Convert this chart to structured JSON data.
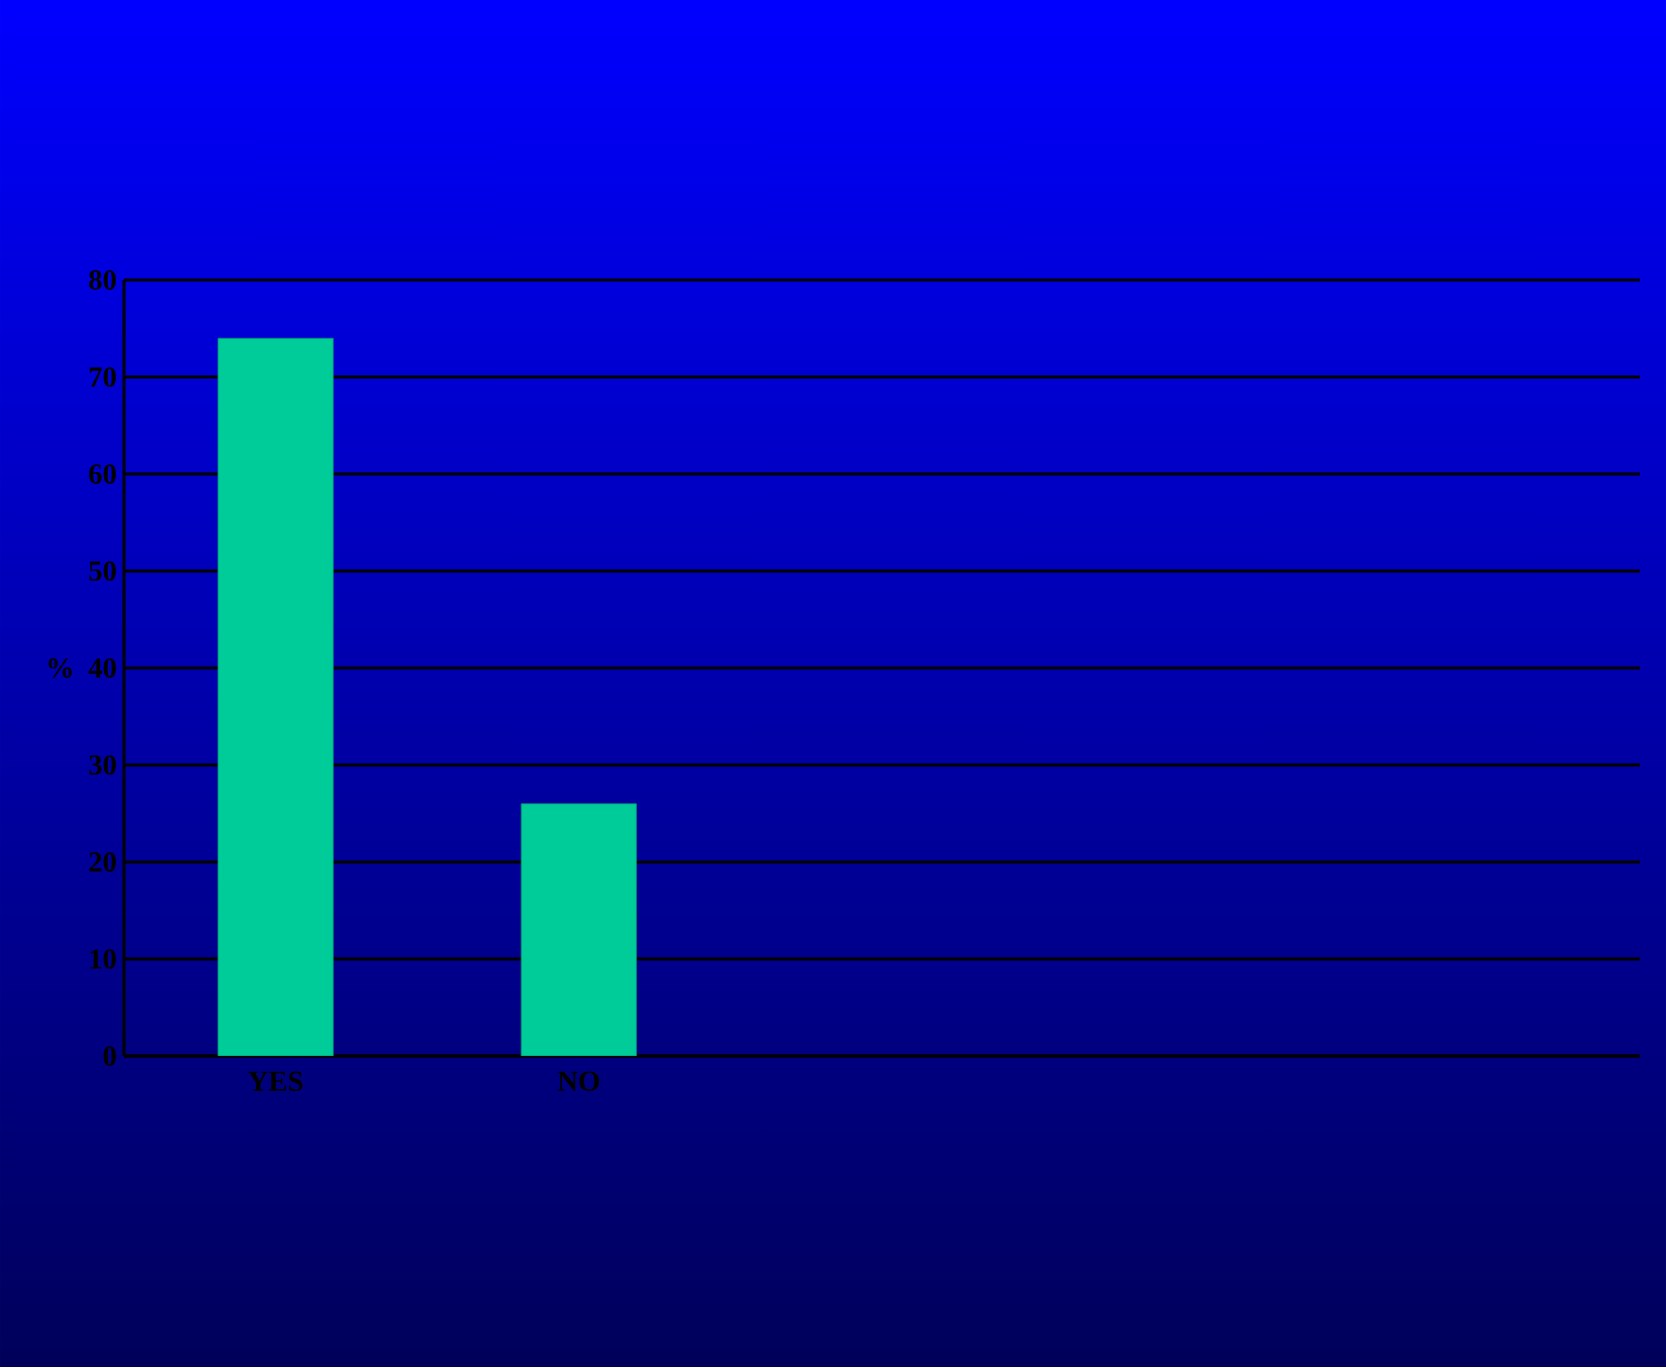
{
  "chart_data": {
    "type": "bar",
    "ylabel": "%",
    "categories": [
      "YES",
      "NO",
      null,
      null,
      null
    ],
    "values": [
      74,
      26,
      null,
      null,
      null
    ],
    "color": "#00cc99",
    "ylim": [
      0,
      80
    ],
    "yticks": [
      0,
      10,
      20,
      30,
      40,
      50,
      60,
      70,
      80
    ],
    "grid": "y"
  }
}
